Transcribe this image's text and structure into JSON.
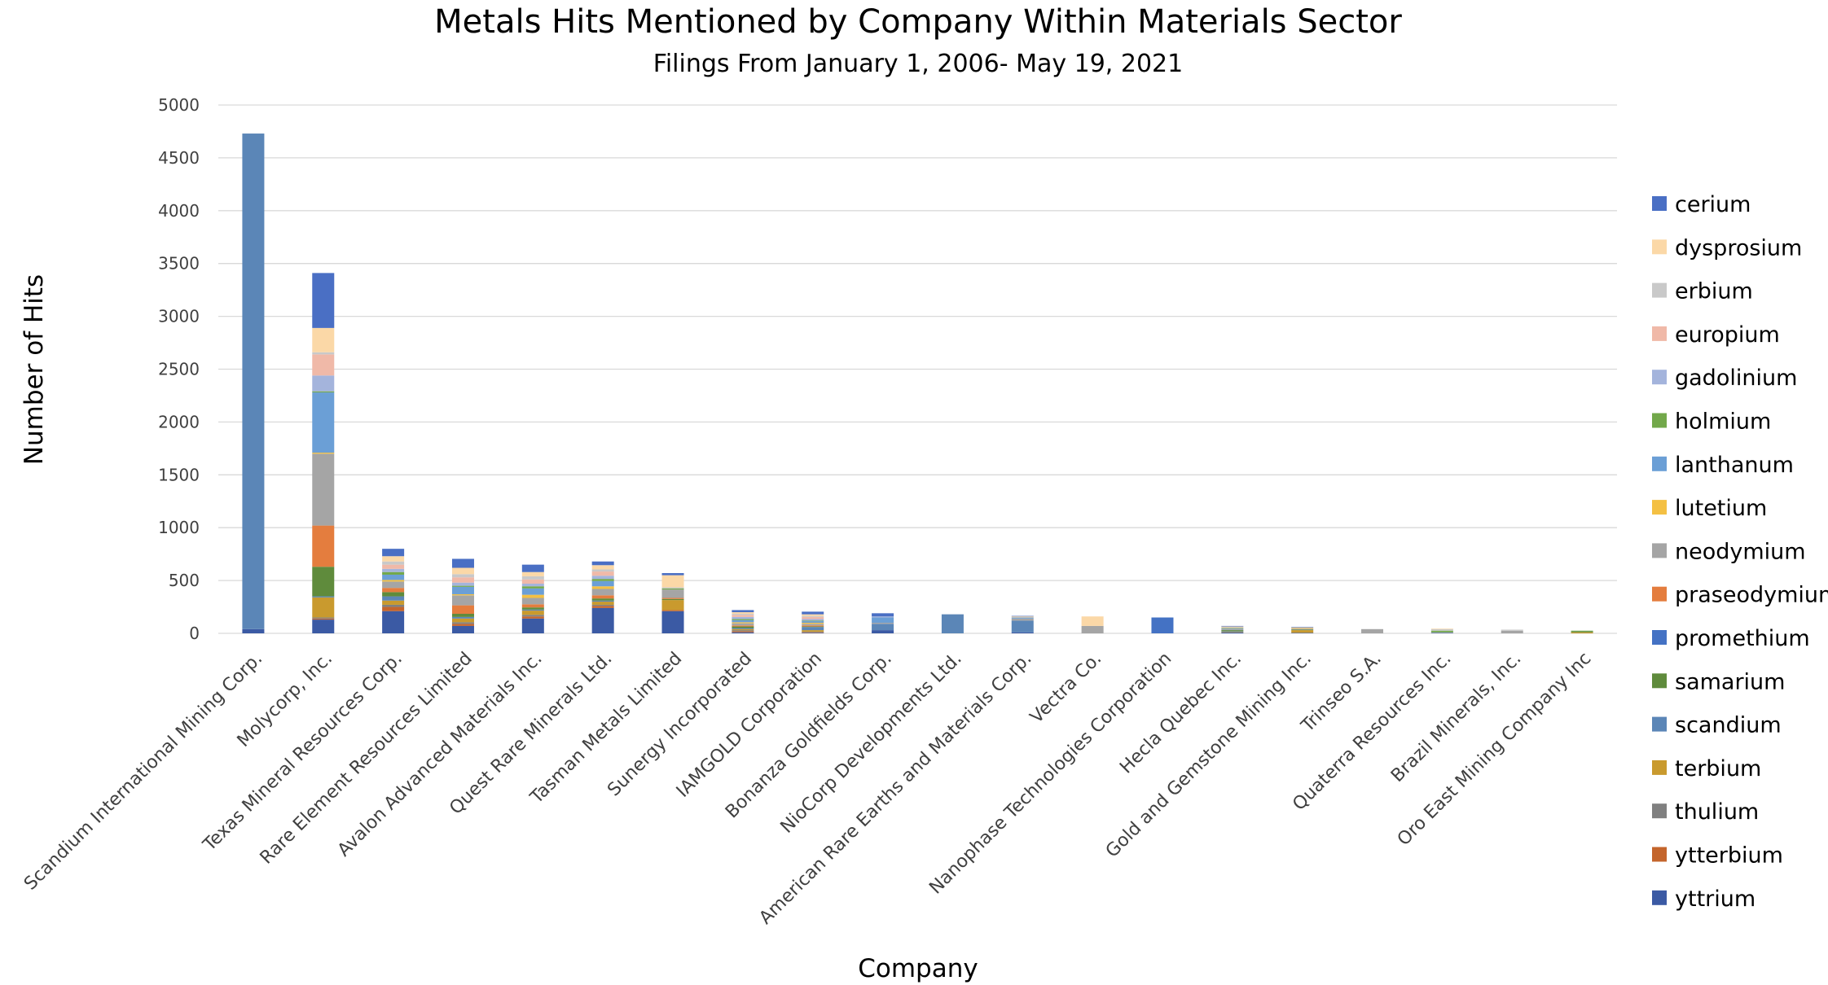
{
  "chart_data": {
    "type": "bar",
    "stacked": true,
    "title": "Metals Hits Mentioned by Company Within Materials Sector",
    "subtitle": "Filings From January 1, 2006- May 19, 2021",
    "xlabel": "Company",
    "ylabel": "Number of Hits",
    "ylim": [
      0,
      5000
    ],
    "yticks": [
      0,
      500,
      1000,
      1500,
      2000,
      2500,
      3000,
      3500,
      4000,
      4500,
      5000
    ],
    "grid": true,
    "legend_position": "right",
    "categories": [
      "Scandium International Mining Corp.",
      "Molycorp, Inc.",
      "Texas Mineral Resources Corp.",
      "Rare Element Resources Limited",
      "Avalon Advanced Materials Inc.",
      "Quest Rare Minerals Ltd.",
      "Tasman Metals Limited",
      "Sunergy Incorporated",
      "IAMGOLD Corporation",
      "Bonanza Goldfields Corp.",
      "NioCorp Developments Ltd.",
      "American Rare Earths and Materials Corp.",
      "Vectra Co.",
      "Nanophase Technologies Corporation",
      "Hecla Quebec Inc.",
      "Gold and Gemstone Mining Inc.",
      "Trinseo S.A.",
      "Quaterra Resources Inc.",
      "Brazil Minerals, Inc.",
      "Oro East Mining Company Inc"
    ],
    "series": [
      {
        "name": "yttrium",
        "color": "#3b5aa4",
        "values": [
          40,
          130,
          210,
          70,
          140,
          240,
          210,
          10,
          5,
          30,
          0,
          10,
          0,
          0,
          10,
          5,
          0,
          5,
          0,
          0
        ]
      },
      {
        "name": "ytterbium",
        "color": "#c4652c",
        "values": [
          0,
          10,
          40,
          20,
          20,
          20,
          10,
          10,
          5,
          0,
          0,
          0,
          0,
          0,
          0,
          0,
          0,
          0,
          0,
          0
        ]
      },
      {
        "name": "thulium",
        "color": "#808080",
        "values": [
          0,
          10,
          20,
          15,
          15,
          10,
          0,
          10,
          5,
          0,
          0,
          0,
          0,
          0,
          0,
          0,
          0,
          0,
          0,
          0
        ]
      },
      {
        "name": "terbium",
        "color": "#c99a2e",
        "values": [
          0,
          190,
          40,
          35,
          40,
          30,
          95,
          10,
          15,
          0,
          0,
          0,
          0,
          0,
          5,
          25,
          0,
          0,
          0,
          10
        ]
      },
      {
        "name": "scandium",
        "color": "#5b86b7",
        "values": [
          4690,
          10,
          40,
          15,
          10,
          10,
          0,
          10,
          30,
          60,
          180,
          110,
          0,
          0,
          5,
          0,
          0,
          0,
          0,
          0
        ]
      },
      {
        "name": "samarium",
        "color": "#5f8b3c",
        "values": [
          0,
          280,
          40,
          30,
          20,
          20,
          10,
          15,
          5,
          0,
          0,
          0,
          0,
          0,
          10,
          5,
          0,
          0,
          0,
          10
        ]
      },
      {
        "name": "promethium",
        "color": "#4472c4",
        "values": [
          0,
          0,
          0,
          0,
          0,
          0,
          0,
          0,
          0,
          0,
          0,
          0,
          0,
          150,
          0,
          0,
          0,
          0,
          0,
          0
        ]
      },
      {
        "name": "praseodymium",
        "color": "#e47d3e",
        "values": [
          0,
          390,
          40,
          80,
          30,
          30,
          10,
          10,
          10,
          0,
          0,
          0,
          0,
          0,
          0,
          0,
          0,
          0,
          0,
          0
        ]
      },
      {
        "name": "neodymium",
        "color": "#a5a5a5",
        "values": [
          0,
          680,
          60,
          95,
          60,
          60,
          80,
          20,
          15,
          10,
          0,
          20,
          70,
          0,
          10,
          10,
          40,
          5,
          25,
          0
        ]
      },
      {
        "name": "lutetium",
        "color": "#f4c043",
        "values": [
          0,
          10,
          15,
          10,
          30,
          25,
          0,
          10,
          10,
          0,
          0,
          0,
          0,
          0,
          0,
          5,
          0,
          0,
          0,
          0
        ]
      },
      {
        "name": "lanthanum",
        "color": "#6b9fd6",
        "values": [
          0,
          570,
          50,
          70,
          60,
          50,
          0,
          20,
          15,
          50,
          0,
          10,
          0,
          0,
          5,
          0,
          0,
          0,
          0,
          0
        ]
      },
      {
        "name": "holmium",
        "color": "#72a84a",
        "values": [
          0,
          10,
          25,
          10,
          20,
          20,
          10,
          10,
          5,
          0,
          0,
          0,
          0,
          0,
          5,
          0,
          0,
          15,
          0,
          5
        ]
      },
      {
        "name": "gadolinium",
        "color": "#a4b4dc",
        "values": [
          0,
          150,
          30,
          30,
          25,
          30,
          0,
          20,
          15,
          10,
          0,
          0,
          0,
          0,
          0,
          0,
          0,
          0,
          0,
          0
        ]
      },
      {
        "name": "europium",
        "color": "#f0b9a8",
        "values": [
          0,
          200,
          40,
          50,
          40,
          40,
          0,
          20,
          20,
          0,
          0,
          0,
          0,
          0,
          5,
          0,
          0,
          0,
          0,
          0
        ]
      },
      {
        "name": "erbium",
        "color": "#c9c9c9",
        "values": [
          0,
          20,
          30,
          30,
          30,
          20,
          10,
          10,
          10,
          0,
          0,
          0,
          0,
          0,
          5,
          0,
          0,
          15,
          10,
          0
        ]
      },
      {
        "name": "dysprosium",
        "color": "#fbd8a7",
        "values": [
          0,
          230,
          50,
          60,
          40,
          40,
          115,
          15,
          15,
          0,
          0,
          10,
          90,
          0,
          5,
          5,
          0,
          5,
          0,
          0
        ]
      },
      {
        "name": "cerium",
        "color": "#4a6fc4",
        "values": [
          0,
          520,
          70,
          85,
          70,
          35,
          20,
          20,
          25,
          30,
          0,
          5,
          0,
          0,
          5,
          5,
          0,
          0,
          0,
          0
        ]
      }
    ],
    "legend_order": [
      "cerium",
      "dysprosium",
      "erbium",
      "europium",
      "gadolinium",
      "holmium",
      "lanthanum",
      "lutetium",
      "neodymium",
      "praseodymium",
      "promethium",
      "samarium",
      "scandium",
      "terbium",
      "thulium",
      "ytterbium",
      "yttrium"
    ]
  }
}
